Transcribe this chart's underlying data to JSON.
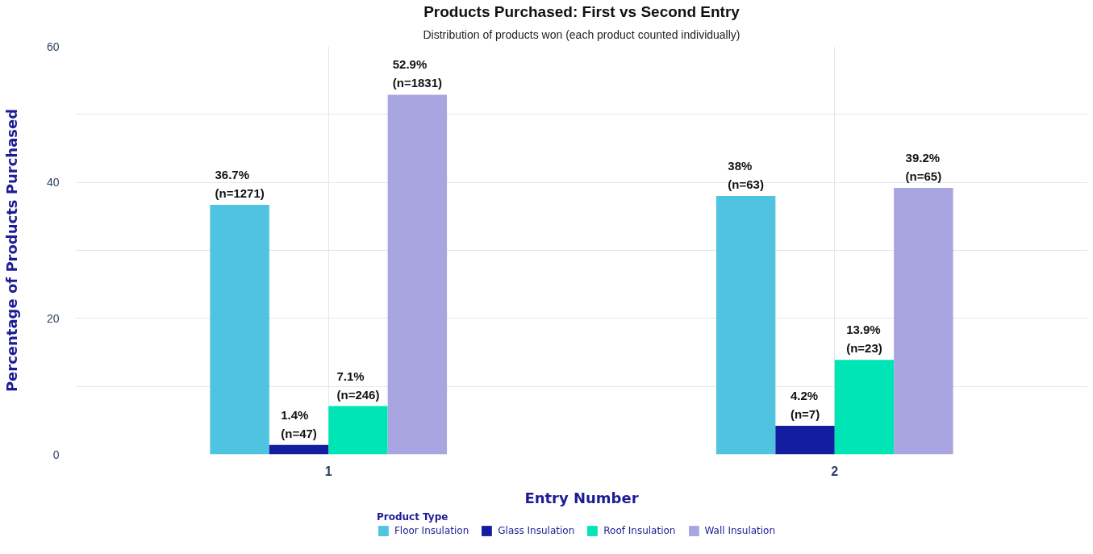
{
  "chart_data": {
    "type": "bar",
    "title": "Products Purchased: First vs Second Entry",
    "subtitle": "Distribution of products won (each product counted individually)",
    "xlabel": "Entry Number",
    "ylabel": "Percentage of Products Purchased",
    "legend_title": "Product Type",
    "legend": "bottom",
    "grid": true,
    "categories": [
      "1",
      "2"
    ],
    "series": [
      {
        "name": "Floor Insulation",
        "color": "#4fc3df",
        "values": [
          36.7,
          38
        ],
        "value_labels": [
          "36.7%\n(n=1271)",
          "38%\n(n=63)"
        ]
      },
      {
        "name": "Glass Insulation",
        "color": "#121d9f",
        "values": [
          1.4,
          4.2
        ],
        "value_labels": [
          "1.4%\n(n=47)",
          "4.2%\n(n=7)"
        ]
      },
      {
        "name": "Roof Insulation",
        "color": "#00e5b5",
        "values": [
          7.1,
          13.9
        ],
        "value_labels": [
          "7.1%\n(n=246)",
          "13.9%\n(n=23)"
        ]
      },
      {
        "name": "Wall Insulation",
        "color": "#a9a5e0",
        "values": [
          52.9,
          39.2
        ],
        "value_labels": [
          "52.9%\n(n=1831)",
          "39.2%\n(n=65)"
        ]
      }
    ],
    "ylim": [
      0,
      60
    ],
    "yticks": [
      0,
      {
        "value": 10,
        "label": null
      },
      20,
      {
        "value": 30,
        "label": null
      },
      40,
      {
        "value": 50,
        "label": null
      },
      60
    ]
  }
}
